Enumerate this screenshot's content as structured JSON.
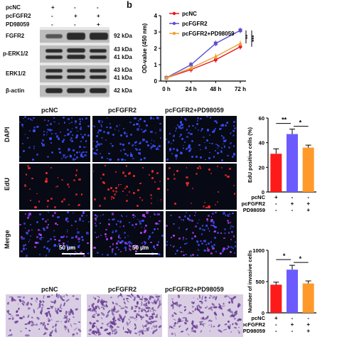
{
  "panel_b_letter": "b",
  "western": {
    "conditions": [
      "pcNC",
      "pcFGFR2",
      "PD98059"
    ],
    "signs": [
      [
        "+",
        "-",
        "-"
      ],
      [
        "-",
        "+",
        "+"
      ],
      [
        "-",
        "-",
        "+"
      ]
    ],
    "rows": [
      {
        "name": "FGFR2",
        "kda": [
          "92 kDa"
        ]
      },
      {
        "name": "p-ERK1/2",
        "kda": [
          "43 kDa",
          "41 kDa"
        ]
      },
      {
        "name": "ERK1/2",
        "kda": [
          "43 kDa",
          "41 kDa"
        ]
      },
      {
        "name": "β-actin",
        "kda": [
          "42 kDa"
        ]
      }
    ]
  },
  "chart_data": [
    {
      "type": "line",
      "categories": [
        "0 h",
        "24 h",
        "48 h",
        "72 h"
      ],
      "ylabel": "OD-value (450 nm)",
      "ylim": [
        0,
        4
      ],
      "yticks": [
        "0",
        "1",
        "2",
        "3",
        "4"
      ],
      "series": [
        {
          "name": "pcNC",
          "color": "#e41a1c",
          "values": [
            0.2,
            0.7,
            1.3,
            2.1
          ]
        },
        {
          "name": "pcFGFR2",
          "color": "#5a4fcf",
          "values": [
            0.2,
            1.0,
            2.3,
            3.1
          ]
        },
        {
          "name": "pcFGFR2+PD98059",
          "color": "#f0a030",
          "values": [
            0.2,
            0.8,
            1.5,
            2.3
          ]
        }
      ],
      "significance": [
        "**",
        "***"
      ]
    },
    {
      "type": "bar",
      "ylabel": "EdU positive cells (%)",
      "ylim": [
        0,
        60
      ],
      "yticks": [
        "0",
        "20",
        "40",
        "60"
      ],
      "values": [
        31,
        47,
        36
      ],
      "errors": [
        4,
        4,
        2
      ],
      "colors": [
        "#ff1a1a",
        "#6b5bff",
        "#ff9a2a"
      ],
      "rows": [
        {
          "label": "pcNC",
          "signs": [
            "+",
            "-",
            "-"
          ]
        },
        {
          "label": "pcFGFR2",
          "signs": [
            "-",
            "+",
            "+"
          ]
        },
        {
          "label": "PD98059",
          "signs": [
            "-",
            "-",
            "+"
          ]
        }
      ],
      "significance": [
        "**",
        "*"
      ]
    },
    {
      "type": "bar",
      "ylabel": "Number of invasive cells",
      "ylim": [
        0,
        1000
      ],
      "yticks": [
        "0",
        "500",
        "1000"
      ],
      "values": [
        450,
        690,
        470
      ],
      "errors": [
        40,
        70,
        40
      ],
      "colors": [
        "#ff1a1a",
        "#6b5bff",
        "#ff9a2a"
      ],
      "rows": [
        {
          "label": "pcNC",
          "signs": [
            "+",
            "-",
            "-"
          ]
        },
        {
          "label": "pcFGFR2",
          "signs": [
            "-",
            "+",
            "+"
          ]
        },
        {
          "label": "PD98059",
          "signs": [
            "-",
            "-",
            "+"
          ]
        }
      ],
      "significance": [
        "*",
        "*"
      ]
    }
  ],
  "microscopy": {
    "columns": [
      "pcNC",
      "pcFGFR2",
      "pcFGFR2+PD98059"
    ],
    "rows": [
      "DAPI",
      "EdU",
      "Merge"
    ],
    "scale_label": "50 μm",
    "colors": {
      "dapi": "#3a4dff",
      "edu": "#ff2a2a",
      "merge": "#c040ff"
    }
  },
  "invasion": {
    "columns": [
      "pcNC",
      "pcFGFR2",
      "pcFGFR2+PD98059"
    ],
    "colors": {
      "cell": "#6a3f96",
      "background": "#d9cde3"
    }
  }
}
